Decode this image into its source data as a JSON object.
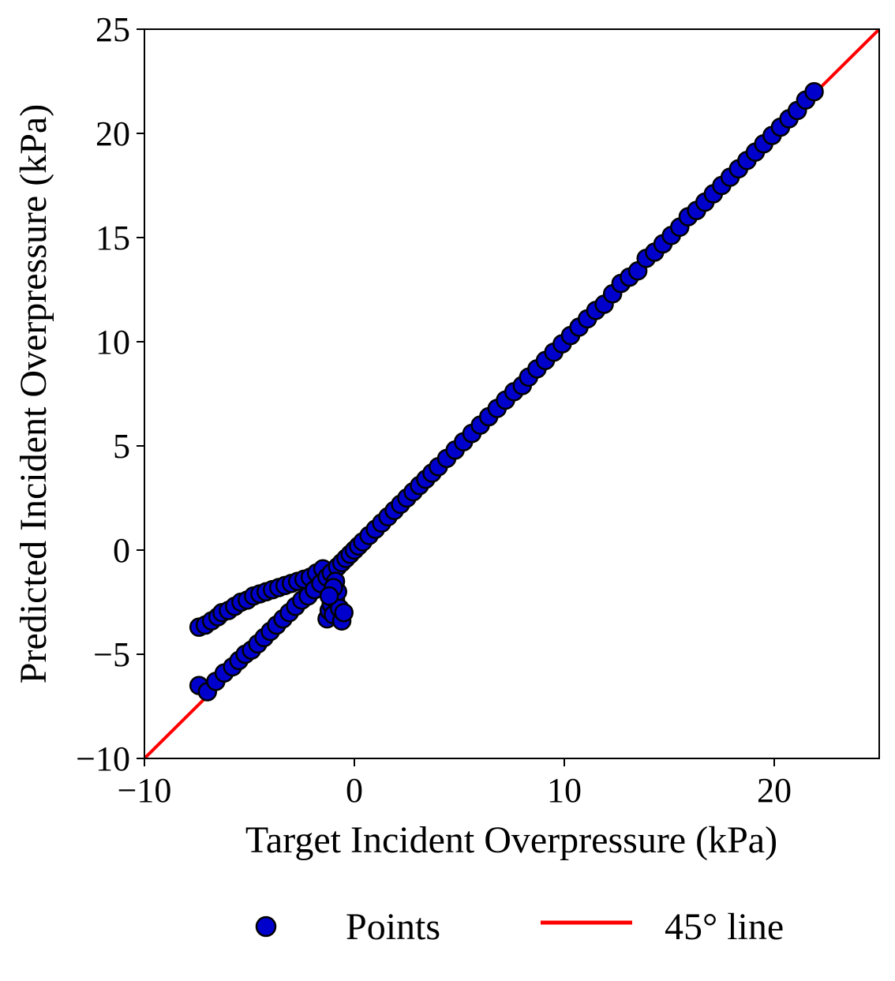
{
  "chart_data": {
    "type": "scatter",
    "title": "",
    "xlabel": "Target Incident Overpressure (kPa)",
    "ylabel": "Predicted Incident Overpressure (kPa)",
    "xlim": [
      -10,
      25
    ],
    "ylim": [
      -10,
      25
    ],
    "xticks": [
      -10,
      0,
      10,
      20
    ],
    "yticks": [
      -10,
      -5,
      0,
      5,
      10,
      15,
      20,
      25
    ],
    "xtick_labels": [
      "−10",
      "0",
      "10",
      "20"
    ],
    "ytick_labels": [
      "−10",
      "−5",
      "0",
      "5",
      "10",
      "15",
      "20",
      "25"
    ],
    "grid": false,
    "legend": {
      "placement": "bottom-center",
      "entries": [
        {
          "label": "Points",
          "kind": "marker",
          "color": "#0000cd"
        },
        {
          "label": "45° line",
          "kind": "line",
          "color": "#ff0000"
        }
      ]
    },
    "reference_line": {
      "name": "45° line",
      "color": "#ff0000",
      "x": [
        -10,
        25
      ],
      "y": [
        -10,
        25
      ]
    },
    "series": [
      {
        "name": "Points",
        "color": "#0000cd",
        "edgecolor": "#000000",
        "x": [
          -7.4,
          -7.1,
          -6.8,
          -6.5,
          -6.3,
          -6.0,
          -5.7,
          -5.4,
          -5.1,
          -4.8,
          -4.5,
          -4.2,
          -3.9,
          -3.6,
          -3.3,
          -3.0,
          -2.7,
          -2.4,
          -2.1,
          -1.8,
          -1.5,
          -7.4,
          -7.0,
          -6.6,
          -6.2,
          -5.8,
          -5.5,
          -5.2,
          -4.9,
          -4.6,
          -4.3,
          -4.0,
          -3.7,
          -3.4,
          -3.1,
          -2.8,
          -2.5,
          -2.2,
          -1.9,
          -1.6,
          -1.3,
          -1.1,
          -0.8,
          -1.3,
          -1.2,
          -1.1,
          -1.0,
          -0.9,
          -0.8,
          -0.7,
          -0.6,
          -0.5,
          -0.9,
          -1.0,
          -1.2,
          -0.6,
          -0.4,
          -0.2,
          0.0,
          0.2,
          0.4,
          0.7,
          1.0,
          1.3,
          1.6,
          1.9,
          2.2,
          2.5,
          2.8,
          3.1,
          3.4,
          3.7,
          4.0,
          4.4,
          4.8,
          5.2,
          5.6,
          6.0,
          6.4,
          6.8,
          7.2,
          7.6,
          8.0,
          8.3,
          8.7,
          9.1,
          9.5,
          9.9,
          10.3,
          10.7,
          11.1,
          11.5,
          11.9,
          12.3,
          12.7,
          13.1,
          13.5,
          13.9,
          14.3,
          14.7,
          15.1,
          15.5,
          15.9,
          16.3,
          16.7,
          17.1,
          17.5,
          17.9,
          18.3,
          18.7,
          19.1,
          19.5,
          19.9,
          20.3,
          20.7,
          21.1,
          21.5,
          21.9
        ],
        "y": [
          -3.7,
          -3.6,
          -3.4,
          -3.2,
          -3.0,
          -2.9,
          -2.7,
          -2.5,
          -2.4,
          -2.2,
          -2.1,
          -2.0,
          -1.9,
          -1.8,
          -1.7,
          -1.6,
          -1.5,
          -1.4,
          -1.3,
          -1.1,
          -0.9,
          -6.5,
          -6.8,
          -6.3,
          -5.9,
          -5.6,
          -5.3,
          -5.0,
          -4.8,
          -4.5,
          -4.2,
          -3.9,
          -3.6,
          -3.3,
          -3.0,
          -2.7,
          -2.4,
          -2.2,
          -1.9,
          -1.6,
          -1.3,
          -1.1,
          -0.8,
          -3.3,
          -2.9,
          -2.6,
          -3.1,
          -2.4,
          -2.0,
          -2.8,
          -3.4,
          -3.0,
          -1.5,
          -1.8,
          -2.2,
          -0.6,
          -0.4,
          -0.2,
          0.0,
          0.2,
          0.4,
          0.7,
          1.0,
          1.3,
          1.6,
          1.9,
          2.2,
          2.5,
          2.8,
          3.1,
          3.4,
          3.7,
          4.0,
          4.4,
          4.8,
          5.2,
          5.6,
          6.0,
          6.4,
          6.8,
          7.2,
          7.6,
          7.9,
          8.3,
          8.7,
          9.1,
          9.5,
          9.9,
          10.3,
          10.7,
          11.1,
          11.5,
          11.8,
          12.3,
          12.8,
          13.1,
          13.4,
          14.0,
          14.3,
          14.7,
          15.1,
          15.5,
          16.0,
          16.3,
          16.7,
          17.1,
          17.5,
          17.9,
          18.3,
          18.7,
          19.1,
          19.5,
          19.9,
          20.3,
          20.7,
          21.1,
          21.6,
          22.0
        ]
      }
    ]
  }
}
